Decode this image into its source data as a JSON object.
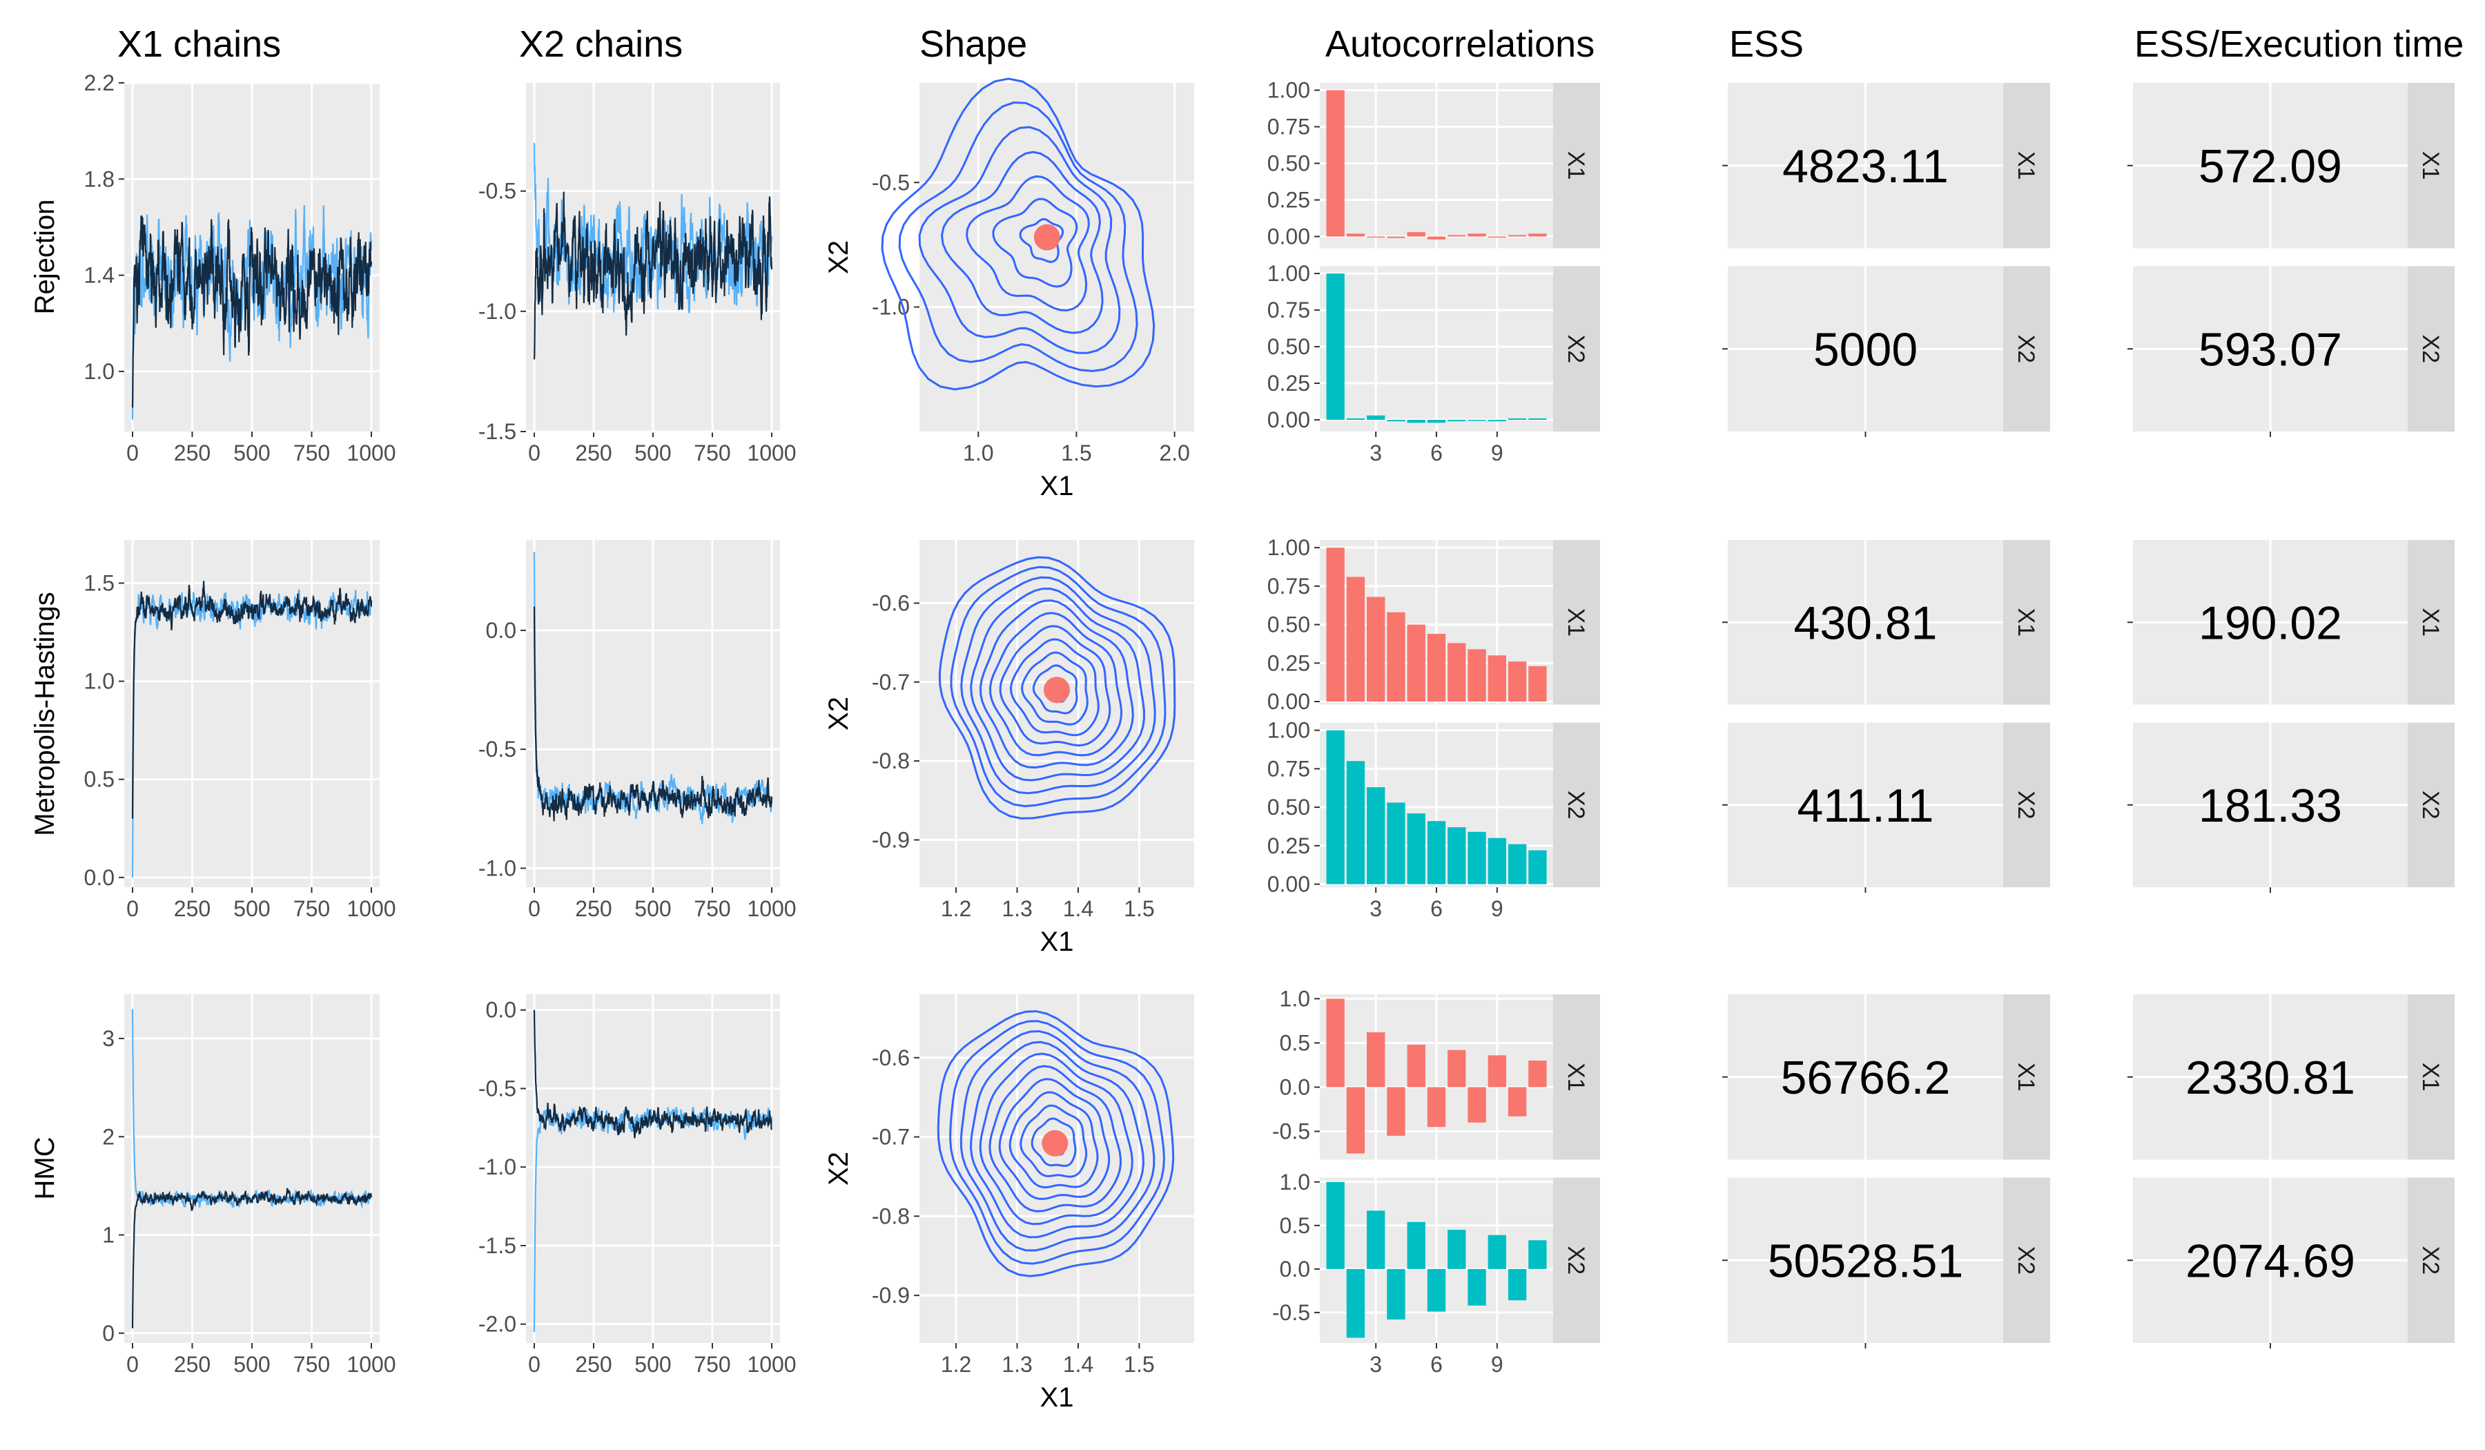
{
  "column_titles": [
    "X1 chains",
    "X2 chains",
    "Shape",
    "Autocorrelations",
    "ESS",
    "ESS/Execution time"
  ],
  "row_titles": [
    "Rejection",
    "Metropolis-Hastings",
    "HMC"
  ],
  "colors": {
    "panel_bg": "#ebebeb",
    "grid": "#ffffff",
    "strip_bg": "#d9d9d9",
    "chain_dark": "#132b43",
    "chain_light": "#56b1f7",
    "contour": "#3366ff",
    "mode_point": "#f8766d",
    "acf_x1": "#f8766d",
    "acf_x2": "#00bfc4"
  },
  "chart_data": [
    {
      "type": "line",
      "panel": "X1 chains",
      "row": "Rejection",
      "x_range": [
        0,
        1000
      ],
      "ylim": [
        0.75,
        2.2
      ],
      "xticks": [
        "0",
        "250",
        "500",
        "750",
        "1000"
      ],
      "yticks": [
        {
          "v": 1.0,
          "l": "1.0"
        },
        {
          "v": 1.4,
          "l": "1.4"
        },
        {
          "v": 1.8,
          "l": "1.8"
        },
        {
          "v": 2.2,
          "l": "2.2"
        }
      ],
      "series": [
        {
          "start": 0.8,
          "center": 1.38,
          "band": 0.6
        },
        {
          "start": 0.85,
          "center": 1.38,
          "band": 0.6
        }
      ]
    },
    {
      "type": "line",
      "panel": "X2 chains",
      "row": "Rejection",
      "x_range": [
        0,
        1000
      ],
      "ylim": [
        -1.5,
        -0.05
      ],
      "xticks": [
        "0",
        "250",
        "500",
        "750",
        "1000"
      ],
      "yticks": [
        {
          "v": -1.5,
          "l": "-1.5"
        },
        {
          "v": -1.0,
          "l": "-1.0"
        },
        {
          "v": -0.5,
          "l": "-0.5"
        }
      ],
      "series": [
        {
          "start": -0.3,
          "center": -0.77,
          "band": 0.58
        },
        {
          "start": -1.2,
          "center": -0.77,
          "band": 0.58
        }
      ]
    },
    {
      "type": "contour",
      "panel": "Shape",
      "row": "Rejection",
      "xlim": [
        0.7,
        2.1
      ],
      "ylim": [
        -1.5,
        -0.1
      ],
      "xticks": [
        {
          "v": 1.0,
          "l": "1.0"
        },
        {
          "v": 1.5,
          "l": "1.5"
        },
        {
          "v": 2.0,
          "l": "2.0"
        }
      ],
      "yticks": [
        {
          "v": -1.0,
          "l": "-1.0"
        },
        {
          "v": -0.5,
          "l": "-0.5"
        }
      ],
      "xlabel": "X1",
      "ylabel": "X2",
      "mode": [
        1.35,
        -0.72
      ]
    },
    {
      "type": "bar",
      "panel": "Autocorrelations",
      "row": "Rejection",
      "lags": [
        1,
        2,
        3,
        4,
        5,
        6,
        7,
        8,
        9,
        10,
        11
      ],
      "xticks": [
        "3",
        "6",
        "9"
      ],
      "facets": [
        {
          "name": "X1",
          "ylim": [
            -0.08,
            1.05
          ],
          "yticks": [
            {
              "v": 0.0,
              "l": "0.00"
            },
            {
              "v": 0.25,
              "l": "0.25"
            },
            {
              "v": 0.5,
              "l": "0.50"
            },
            {
              "v": 0.75,
              "l": "0.75"
            },
            {
              "v": 1.0,
              "l": "1.00"
            }
          ],
          "values": [
            1.0,
            0.02,
            0.0,
            -0.01,
            0.03,
            -0.02,
            0.01,
            0.02,
            0.0,
            0.01,
            0.02
          ]
        },
        {
          "name": "X2",
          "ylim": [
            -0.08,
            1.05
          ],
          "yticks": [
            {
              "v": 0.0,
              "l": "0.00"
            },
            {
              "v": 0.25,
              "l": "0.25"
            },
            {
              "v": 0.5,
              "l": "0.50"
            },
            {
              "v": 0.75,
              "l": "0.75"
            },
            {
              "v": 1.0,
              "l": "1.00"
            }
          ],
          "values": [
            1.0,
            0.01,
            0.03,
            -0.01,
            -0.02,
            -0.02,
            -0.01,
            0.0,
            -0.01,
            0.01,
            0.01
          ]
        }
      ]
    },
    {
      "type": "table",
      "panel": "ESS",
      "row": "Rejection",
      "facets": [
        {
          "name": "X1",
          "value": "4823.11"
        },
        {
          "name": "X2",
          "value": "5000"
        }
      ]
    },
    {
      "type": "table",
      "panel": "ESS/Execution time",
      "row": "Rejection",
      "facets": [
        {
          "name": "X1",
          "value": "572.09"
        },
        {
          "name": "X2",
          "value": "593.07"
        }
      ]
    },
    {
      "type": "line",
      "panel": "X1 chains",
      "row": "Metropolis-Hastings",
      "x_range": [
        0,
        1000
      ],
      "ylim": [
        -0.05,
        1.72
      ],
      "xticks": [
        "0",
        "250",
        "500",
        "750",
        "1000"
      ],
      "yticks": [
        {
          "v": 0.0,
          "l": "0.0"
        },
        {
          "v": 0.5,
          "l": "0.5"
        },
        {
          "v": 1.0,
          "l": "1.0"
        },
        {
          "v": 1.5,
          "l": "1.5"
        }
      ],
      "series": [
        {
          "start": 0.0,
          "center": 1.37,
          "band": 0.2
        },
        {
          "start": 0.3,
          "center": 1.37,
          "band": 0.2
        }
      ]
    },
    {
      "type": "line",
      "panel": "X2 chains",
      "row": "Metropolis-Hastings",
      "x_range": [
        0,
        1000
      ],
      "ylim": [
        -1.08,
        0.38
      ],
      "xticks": [
        "0",
        "250",
        "500",
        "750",
        "1000"
      ],
      "yticks": [
        {
          "v": -1.0,
          "l": "-1.0"
        },
        {
          "v": -0.5,
          "l": "-0.5"
        },
        {
          "v": 0.0,
          "l": "0.0"
        }
      ],
      "series": [
        {
          "start": 0.33,
          "center": -0.71,
          "band": 0.18
        },
        {
          "start": 0.1,
          "center": -0.71,
          "band": 0.18
        }
      ]
    },
    {
      "type": "contour",
      "panel": "Shape",
      "row": "Metropolis-Hastings",
      "xlim": [
        1.14,
        1.59
      ],
      "ylim": [
        -0.96,
        -0.52
      ],
      "xticks": [
        {
          "v": 1.2,
          "l": "1.2"
        },
        {
          "v": 1.3,
          "l": "1.3"
        },
        {
          "v": 1.4,
          "l": "1.4"
        },
        {
          "v": 1.5,
          "l": "1.5"
        }
      ],
      "yticks": [
        {
          "v": -0.9,
          "l": "-0.9"
        },
        {
          "v": -0.8,
          "l": "-0.8"
        },
        {
          "v": -0.7,
          "l": "-0.7"
        },
        {
          "v": -0.6,
          "l": "-0.6"
        }
      ],
      "xlabel": "X1",
      "ylabel": "X2",
      "mode": [
        1.365,
        -0.71
      ]
    },
    {
      "type": "bar",
      "panel": "Autocorrelations",
      "row": "Metropolis-Hastings",
      "lags": [
        1,
        2,
        3,
        4,
        5,
        6,
        7,
        8,
        9,
        10,
        11
      ],
      "xticks": [
        "3",
        "6",
        "9"
      ],
      "facets": [
        {
          "name": "X1",
          "ylim": [
            -0.02,
            1.05
          ],
          "yticks": [
            {
              "v": 0.0,
              "l": "0.00"
            },
            {
              "v": 0.25,
              "l": "0.25"
            },
            {
              "v": 0.5,
              "l": "0.50"
            },
            {
              "v": 0.75,
              "l": "0.75"
            },
            {
              "v": 1.0,
              "l": "1.00"
            }
          ],
          "values": [
            1.0,
            0.81,
            0.68,
            0.58,
            0.5,
            0.44,
            0.38,
            0.34,
            0.3,
            0.26,
            0.23
          ]
        },
        {
          "name": "X2",
          "ylim": [
            -0.02,
            1.05
          ],
          "yticks": [
            {
              "v": 0.0,
              "l": "0.00"
            },
            {
              "v": 0.25,
              "l": "0.25"
            },
            {
              "v": 0.5,
              "l": "0.50"
            },
            {
              "v": 0.75,
              "l": "0.75"
            },
            {
              "v": 1.0,
              "l": "1.00"
            }
          ],
          "values": [
            1.0,
            0.8,
            0.63,
            0.53,
            0.46,
            0.41,
            0.37,
            0.34,
            0.3,
            0.26,
            0.22
          ]
        }
      ]
    },
    {
      "type": "table",
      "panel": "ESS",
      "row": "Metropolis-Hastings",
      "facets": [
        {
          "name": "X1",
          "value": "430.81"
        },
        {
          "name": "X2",
          "value": "411.11"
        }
      ]
    },
    {
      "type": "table",
      "panel": "ESS/Execution time",
      "row": "Metropolis-Hastings",
      "facets": [
        {
          "name": "X1",
          "value": "190.02"
        },
        {
          "name": "X2",
          "value": "181.33"
        }
      ]
    },
    {
      "type": "line",
      "panel": "X1 chains",
      "row": "HMC",
      "x_range": [
        0,
        1000
      ],
      "ylim": [
        -0.1,
        3.45
      ],
      "xticks": [
        "0",
        "250",
        "500",
        "750",
        "1000"
      ],
      "yticks": [
        {
          "v": 0,
          "l": "0"
        },
        {
          "v": 1,
          "l": "1"
        },
        {
          "v": 2,
          "l": "2"
        },
        {
          "v": 3,
          "l": "3"
        }
      ],
      "series": [
        {
          "start": 3.3,
          "center": 1.37,
          "band": 0.18
        },
        {
          "start": 0.05,
          "center": 1.37,
          "band": 0.18
        }
      ]
    },
    {
      "type": "line",
      "panel": "X2 chains",
      "row": "HMC",
      "x_range": [
        0,
        1000
      ],
      "ylim": [
        -2.12,
        0.1
      ],
      "xticks": [
        "0",
        "250",
        "500",
        "750",
        "1000"
      ],
      "yticks": [
        {
          "v": -2.0,
          "l": "-2.0"
        },
        {
          "v": -1.5,
          "l": "-1.5"
        },
        {
          "v": -1.0,
          "l": "-1.0"
        },
        {
          "v": -0.5,
          "l": "-0.5"
        },
        {
          "v": 0.0,
          "l": "0.0"
        }
      ],
      "series": [
        {
          "start": -2.05,
          "center": -0.7,
          "band": 0.2
        },
        {
          "start": 0.0,
          "center": -0.7,
          "band": 0.2
        }
      ]
    },
    {
      "type": "contour",
      "panel": "Shape",
      "row": "HMC",
      "xlim": [
        1.14,
        1.59
      ],
      "ylim": [
        -0.96,
        -0.52
      ],
      "xticks": [
        {
          "v": 1.2,
          "l": "1.2"
        },
        {
          "v": 1.3,
          "l": "1.3"
        },
        {
          "v": 1.4,
          "l": "1.4"
        },
        {
          "v": 1.5,
          "l": "1.5"
        }
      ],
      "yticks": [
        {
          "v": -0.9,
          "l": "-0.9"
        },
        {
          "v": -0.8,
          "l": "-0.8"
        },
        {
          "v": -0.7,
          "l": "-0.7"
        },
        {
          "v": -0.6,
          "l": "-0.6"
        }
      ],
      "xlabel": "X1",
      "ylabel": "X2",
      "mode": [
        1.362,
        -0.708
      ]
    },
    {
      "type": "bar",
      "panel": "Autocorrelations",
      "row": "HMC",
      "lags": [
        1,
        2,
        3,
        4,
        5,
        6,
        7,
        8,
        9,
        10,
        11
      ],
      "xticks": [
        "3",
        "6",
        "9"
      ],
      "facets": [
        {
          "name": "X1",
          "ylim": [
            -0.82,
            1.05
          ],
          "yticks": [
            {
              "v": -0.5,
              "l": "-0.5"
            },
            {
              "v": 0.0,
              "l": "0.0"
            },
            {
              "v": 0.5,
              "l": "0.5"
            },
            {
              "v": 1.0,
              "l": "1.0"
            }
          ],
          "values": [
            1.0,
            -0.75,
            0.62,
            -0.55,
            0.48,
            -0.45,
            0.42,
            -0.4,
            0.36,
            -0.33,
            0.3
          ]
        },
        {
          "name": "X2",
          "ylim": [
            -0.85,
            1.05
          ],
          "yticks": [
            {
              "v": -0.5,
              "l": "-0.5"
            },
            {
              "v": 0.0,
              "l": "0.0"
            },
            {
              "v": 0.5,
              "l": "0.5"
            },
            {
              "v": 1.0,
              "l": "1.0"
            }
          ],
          "values": [
            1.0,
            -0.79,
            0.67,
            -0.58,
            0.54,
            -0.49,
            0.45,
            -0.42,
            0.39,
            -0.36,
            0.33
          ]
        }
      ]
    },
    {
      "type": "table",
      "panel": "ESS",
      "row": "HMC",
      "facets": [
        {
          "name": "X1",
          "value": "56766.2"
        },
        {
          "name": "X2",
          "value": "50528.51"
        }
      ]
    },
    {
      "type": "table",
      "panel": "ESS/Execution time",
      "row": "HMC",
      "facets": [
        {
          "name": "X1",
          "value": "2330.81"
        },
        {
          "name": "X2",
          "value": "2074.69"
        }
      ]
    }
  ]
}
